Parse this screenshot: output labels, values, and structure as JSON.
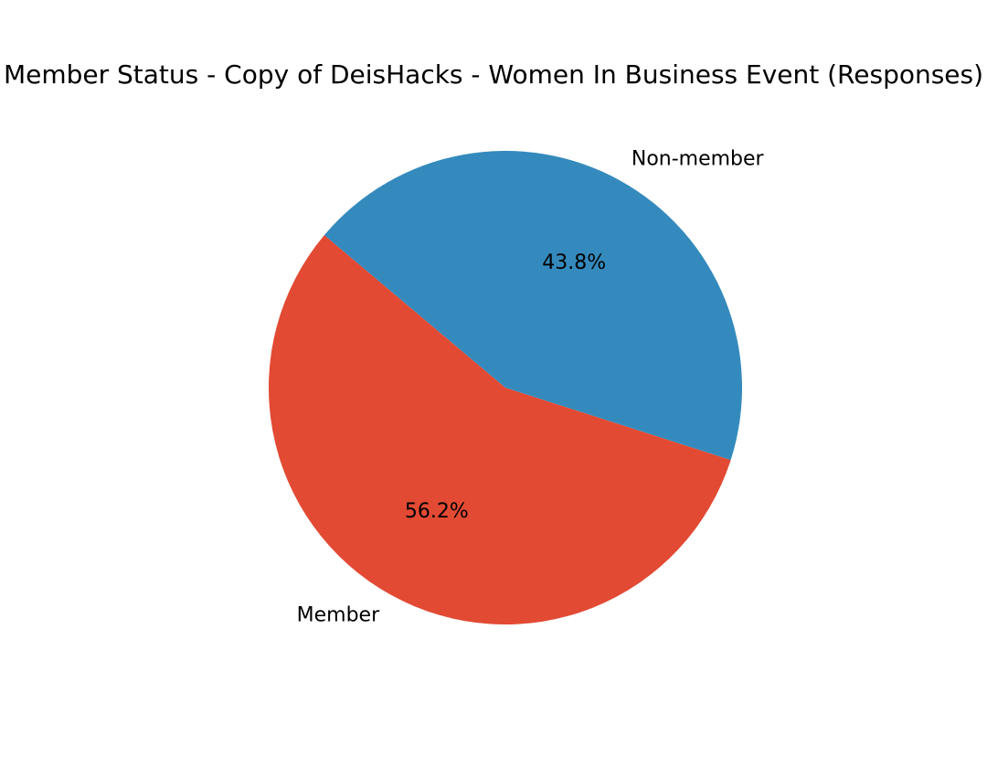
{
  "chart_data": {
    "type": "pie",
    "title": "Member Status - Copy of DeisHacks - Women In Business Event (Responses)",
    "slices": [
      {
        "label": "Member",
        "value": 56.2,
        "pct_label": "56.2%",
        "color": "#e24a33"
      },
      {
        "label": "Non-member",
        "value": 43.8,
        "pct_label": "43.8%",
        "color": "#348abd"
      }
    ],
    "legend": "none",
    "grid": false
  }
}
